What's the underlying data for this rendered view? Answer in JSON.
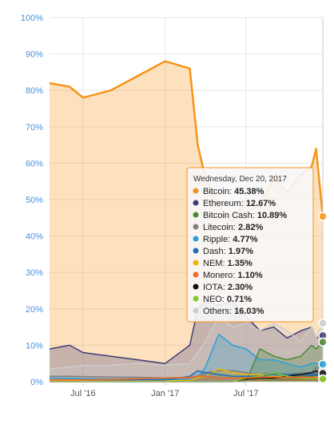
{
  "chart_data": {
    "type": "area",
    "title": "",
    "xlabel": "",
    "ylabel": "",
    "ylim": [
      0,
      100
    ],
    "y_ticks": [
      "0%",
      "10%",
      "20%",
      "30%",
      "40%",
      "50%",
      "60%",
      "70%",
      "80%",
      "90%",
      "100%"
    ],
    "x_ticks": [
      {
        "label": "Jul '16",
        "date": "2016-07-01"
      },
      {
        "label": "Jan '17",
        "date": "2017-01-01"
      },
      {
        "label": "Jul '17",
        "date": "2017-07-01"
      }
    ],
    "x_range": [
      "2016-04-17",
      "2017-12-20"
    ],
    "grid": true,
    "x_dates": [
      "2016-04-17",
      "2016-06-01",
      "2016-07-01",
      "2016-09-01",
      "2016-11-01",
      "2017-01-01",
      "2017-02-25",
      "2017-03-15",
      "2017-04-01",
      "2017-05-01",
      "2017-06-01",
      "2017-07-01",
      "2017-08-01",
      "2017-09-01",
      "2017-10-01",
      "2017-11-01",
      "2017-11-25",
      "2017-12-05",
      "2017-12-20"
    ],
    "series": [
      {
        "name": "Bitcoin",
        "color": "#f7931a",
        "values": [
          82,
          81,
          78,
          80,
          84,
          88,
          86,
          65,
          56,
          48,
          44,
          50,
          48,
          56,
          52,
          57,
          59,
          64,
          45.38
        ]
      },
      {
        "name": "Ethereum",
        "color": "#3d3d7a",
        "values": [
          9,
          10,
          8,
          7,
          6,
          5,
          10,
          20,
          22,
          21,
          22,
          18,
          14,
          15,
          12,
          14,
          15,
          12,
          12.67
        ]
      },
      {
        "name": "Bitcoin Cash",
        "color": "#4a8a3a",
        "values": [
          0,
          0,
          0,
          0,
          0,
          0,
          0,
          0,
          0,
          0,
          0,
          0,
          9,
          7,
          6,
          7,
          10,
          9,
          10.89
        ]
      },
      {
        "name": "Litecoin",
        "color": "#808080",
        "values": [
          1.5,
          1.5,
          1.4,
          1.3,
          1.2,
          1.0,
          1.0,
          1.5,
          2.5,
          3.0,
          3.0,
          2.5,
          2.0,
          2.5,
          2.0,
          2.5,
          2.5,
          4.0,
          2.82
        ]
      },
      {
        "name": "Ripple",
        "color": "#2aa0d8",
        "values": [
          1.0,
          0.9,
          0.8,
          0.7,
          0.8,
          0.6,
          0.5,
          1.0,
          4.0,
          13.0,
          10.0,
          9.0,
          6.0,
          6.0,
          5.0,
          4.0,
          5.0,
          5.0,
          4.77
        ]
      },
      {
        "name": "Dash",
        "color": "#1c6fb6",
        "values": [
          0.5,
          0.5,
          0.5,
          0.5,
          0.5,
          0.5,
          1.5,
          3.0,
          2.5,
          2.0,
          1.5,
          1.5,
          1.5,
          2.0,
          2.0,
          2.0,
          2.0,
          2.0,
          1.97
        ]
      },
      {
        "name": "NEM",
        "color": "#f0b400",
        "values": [
          0.3,
          0.3,
          0.3,
          0.3,
          0.3,
          0.3,
          0.3,
          1.0,
          1.5,
          3.5,
          2.5,
          2.0,
          2.0,
          1.5,
          1.2,
          1.2,
          1.2,
          1.3,
          1.35
        ]
      },
      {
        "name": "Monero",
        "color": "#f26822",
        "values": [
          0.5,
          0.5,
          0.5,
          0.6,
          0.8,
          1.0,
          1.2,
          1.5,
          1.5,
          1.0,
          1.0,
          1.0,
          1.2,
          1.3,
          1.2,
          1.2,
          1.2,
          1.1,
          1.1
        ]
      },
      {
        "name": "IOTA",
        "color": "#111111",
        "values": [
          0,
          0,
          0,
          0,
          0,
          0,
          0,
          0,
          0,
          0,
          0,
          0.8,
          1.0,
          1.0,
          1.5,
          2.0,
          2.5,
          3.0,
          2.3
        ]
      },
      {
        "name": "NEO",
        "color": "#7ec929",
        "values": [
          0,
          0,
          0,
          0,
          0,
          0,
          0,
          0,
          0,
          0,
          0,
          1.0,
          1.5,
          2.5,
          1.5,
          1.0,
          0.8,
          0.8,
          0.71
        ]
      },
      {
        "name": "Others",
        "color": "#cccccc",
        "values": [
          3.5,
          4.0,
          4.5,
          4.5,
          5.0,
          4.5,
          5.0,
          8.0,
          11.0,
          18.0,
          15.0,
          16.0,
          14.0,
          16.0,
          14.0,
          11.0,
          15.0,
          12.0,
          16.03
        ]
      }
    ],
    "tooltip": {
      "date": "Wednesday, Dec 20, 2017",
      "entries": [
        {
          "name": "Bitcoin",
          "value": "45.38%",
          "color": "#f7931a"
        },
        {
          "name": "Ethereum",
          "value": "12.67%",
          "color": "#3d3d7a"
        },
        {
          "name": "Bitcoin Cash",
          "value": "10.89%",
          "color": "#4a8a3a"
        },
        {
          "name": "Litecoin",
          "value": "2.82%",
          "color": "#808080"
        },
        {
          "name": "Ripple",
          "value": "4.77%",
          "color": "#2aa0d8"
        },
        {
          "name": "Dash",
          "value": "1.97%",
          "color": "#1c6fb6"
        },
        {
          "name": "NEM",
          "value": "1.35%",
          "color": "#f0b400"
        },
        {
          "name": "Monero",
          "value": "1.10%",
          "color": "#f26822"
        },
        {
          "name": "IOTA",
          "value": "2.30%",
          "color": "#111111"
        },
        {
          "name": "NEO",
          "value": "0.71%",
          "color": "#7ec929"
        },
        {
          "name": "Others",
          "value": "16.03%",
          "color": "#cccccc"
        }
      ]
    }
  }
}
